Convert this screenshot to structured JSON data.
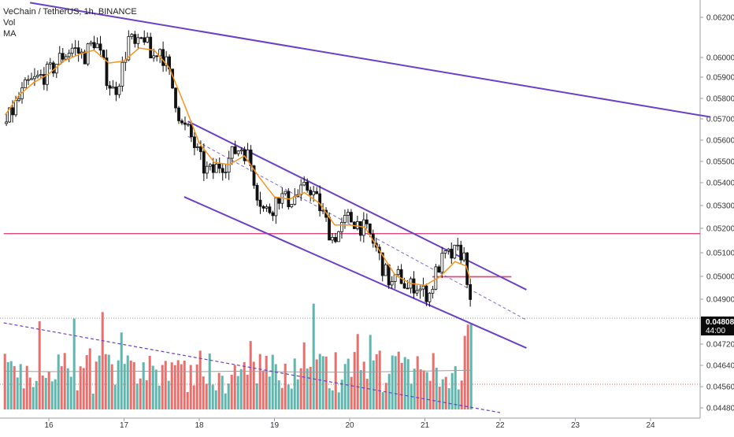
{
  "legend": {
    "title": "VeChain / TetherUS, 1h, BINANCE",
    "vol": "Vol",
    "ma": "MA"
  },
  "price_tag": {
    "price": "0.04808",
    "countdown": "44:00"
  },
  "colors": {
    "up": "#26a69a",
    "down": "#ef5350",
    "vol_up": "#4db6ac",
    "vol_down": "#ef6461",
    "candle": "#111111",
    "ma": "#f7941d",
    "channel": "#6a3fc9",
    "support": "#e0477a",
    "grid_axis": "#9aa0a6"
  },
  "chart_data": {
    "type": "candlestick",
    "symbol": "VeChain / TetherUS",
    "interval": "1h",
    "exchange": "BINANCE",
    "x_ticks": [
      "16",
      "17",
      "18",
      "19",
      "20",
      "21",
      "22",
      "23",
      "24"
    ],
    "x_tick_day": [
      16,
      17,
      18,
      19,
      20,
      21,
      22,
      23,
      24
    ],
    "y_ticks": [
      "0.06200",
      "0.06000",
      "0.05900",
      "0.05800",
      "0.05700",
      "0.05600",
      "0.05500",
      "0.05400",
      "0.05300",
      "0.05200",
      "0.05100",
      "0.05000",
      "0.04900",
      "0.04720",
      "0.04640",
      "0.04560",
      "0.04480"
    ],
    "last_price": 0.04808,
    "horizontal_lines": [
      {
        "price": 0.052,
        "from_day": 15.4,
        "to_day": 24.8
      },
      {
        "price": 0.05,
        "from_day": 21.1,
        "to_day": 22.15
      }
    ],
    "trendlines": [
      {
        "role": "upper-long",
        "from": {
          "day": 15.75,
          "price": 0.0627
        },
        "to": {
          "day": 24.8,
          "price": 0.0574
        }
      },
      {
        "role": "channel-top",
        "from": {
          "day": 17.85,
          "price": 0.0572
        },
        "to": {
          "day": 22.35,
          "price": 0.0494
        }
      },
      {
        "role": "channel-bottom",
        "from": {
          "day": 17.8,
          "price": 0.0537
        },
        "to": {
          "day": 22.35,
          "price": 0.0467
        }
      }
    ],
    "dashed_lines": [
      {
        "role": "channel-mid",
        "from": {
          "day": 17.85,
          "price": 0.0565
        },
        "to": {
          "day": 22.35,
          "price": 0.048
        }
      }
    ],
    "price_path": [
      [
        15.42,
        0.0571
      ],
      [
        15.55,
        0.058
      ],
      [
        15.7,
        0.0589
      ],
      [
        15.85,
        0.0592
      ],
      [
        16.0,
        0.0595
      ],
      [
        16.15,
        0.0602
      ],
      [
        16.3,
        0.0606
      ],
      [
        16.45,
        0.0602
      ],
      [
        16.6,
        0.061
      ],
      [
        16.75,
        0.0593
      ],
      [
        16.85,
        0.0585
      ],
      [
        16.95,
        0.0595
      ],
      [
        17.05,
        0.0611
      ],
      [
        17.15,
        0.0605
      ],
      [
        17.25,
        0.0612
      ],
      [
        17.35,
        0.06
      ],
      [
        17.45,
        0.0607
      ],
      [
        17.55,
        0.0598
      ],
      [
        17.65,
        0.0585
      ],
      [
        17.75,
        0.057
      ],
      [
        17.85,
        0.0567
      ],
      [
        17.95,
        0.0558
      ],
      [
        18.05,
        0.055
      ],
      [
        18.15,
        0.0548
      ],
      [
        18.25,
        0.0552
      ],
      [
        18.35,
        0.0553
      ],
      [
        18.45,
        0.0558
      ],
      [
        18.55,
        0.056
      ],
      [
        18.65,
        0.0555
      ],
      [
        18.75,
        0.054
      ],
      [
        18.85,
        0.053
      ],
      [
        18.95,
        0.0532
      ],
      [
        19.05,
        0.0538
      ],
      [
        19.15,
        0.0535
      ],
      [
        19.25,
        0.0537
      ],
      [
        19.35,
        0.0539
      ],
      [
        19.45,
        0.0542
      ],
      [
        19.55,
        0.0535
      ],
      [
        19.65,
        0.0527
      ],
      [
        19.75,
        0.0518
      ],
      [
        19.85,
        0.0521
      ],
      [
        19.95,
        0.0527
      ],
      [
        20.05,
        0.0526
      ],
      [
        20.15,
        0.0523
      ],
      [
        20.25,
        0.0519
      ],
      [
        20.35,
        0.0512
      ],
      [
        20.45,
        0.0502
      ],
      [
        20.55,
        0.0496
      ],
      [
        20.65,
        0.0501
      ],
      [
        20.75,
        0.0494
      ],
      [
        20.85,
        0.0497
      ],
      [
        20.95,
        0.0493
      ],
      [
        21.05,
        0.0492
      ],
      [
        21.15,
        0.0504
      ],
      [
        21.25,
        0.0509
      ],
      [
        21.35,
        0.051
      ],
      [
        21.45,
        0.0512
      ],
      [
        21.52,
        0.0508
      ],
      [
        21.56,
        0.0496
      ],
      [
        21.6,
        0.0481
      ]
    ],
    "ma_path": [
      [
        15.42,
        0.0575
      ],
      [
        15.6,
        0.0584
      ],
      [
        15.8,
        0.059
      ],
      [
        16.0,
        0.0594
      ],
      [
        16.2,
        0.06
      ],
      [
        16.4,
        0.0603
      ],
      [
        16.6,
        0.0605
      ],
      [
        16.8,
        0.0599
      ],
      [
        17.0,
        0.06
      ],
      [
        17.2,
        0.0606
      ],
      [
        17.4,
        0.0605
      ],
      [
        17.6,
        0.0597
      ],
      [
        17.8,
        0.058
      ],
      [
        18.0,
        0.0562
      ],
      [
        18.2,
        0.0553
      ],
      [
        18.4,
        0.0552
      ],
      [
        18.6,
        0.0556
      ],
      [
        18.8,
        0.0546
      ],
      [
        19.0,
        0.0537
      ],
      [
        19.2,
        0.0536
      ],
      [
        19.4,
        0.0539
      ],
      [
        19.6,
        0.0534
      ],
      [
        19.8,
        0.0524
      ],
      [
        20.0,
        0.0524
      ],
      [
        20.2,
        0.0523
      ],
      [
        20.4,
        0.0512
      ],
      [
        20.6,
        0.0501
      ],
      [
        20.8,
        0.0497
      ],
      [
        21.0,
        0.0496
      ],
      [
        21.2,
        0.05
      ],
      [
        21.4,
        0.0507
      ],
      [
        21.55,
        0.0505
      ],
      [
        21.6,
        0.0499
      ]
    ],
    "volume_ma": [
      [
        15.42,
        0.42
      ],
      [
        16.0,
        0.4
      ],
      [
        16.5,
        0.41
      ],
      [
        17.0,
        0.43
      ],
      [
        17.5,
        0.41
      ],
      [
        18.0,
        0.4
      ],
      [
        18.5,
        0.42
      ],
      [
        19.0,
        0.4
      ],
      [
        19.5,
        0.38
      ],
      [
        20.0,
        0.37
      ],
      [
        20.5,
        0.4
      ],
      [
        21.0,
        0.43
      ],
      [
        21.3,
        0.45
      ],
      [
        21.6,
        0.47
      ]
    ],
    "volume_dashed_line": {
      "from": {
        "day": 15.4,
        "level": 1.0
      },
      "to": {
        "day": 22.0,
        "level": 0.0
      }
    }
  }
}
